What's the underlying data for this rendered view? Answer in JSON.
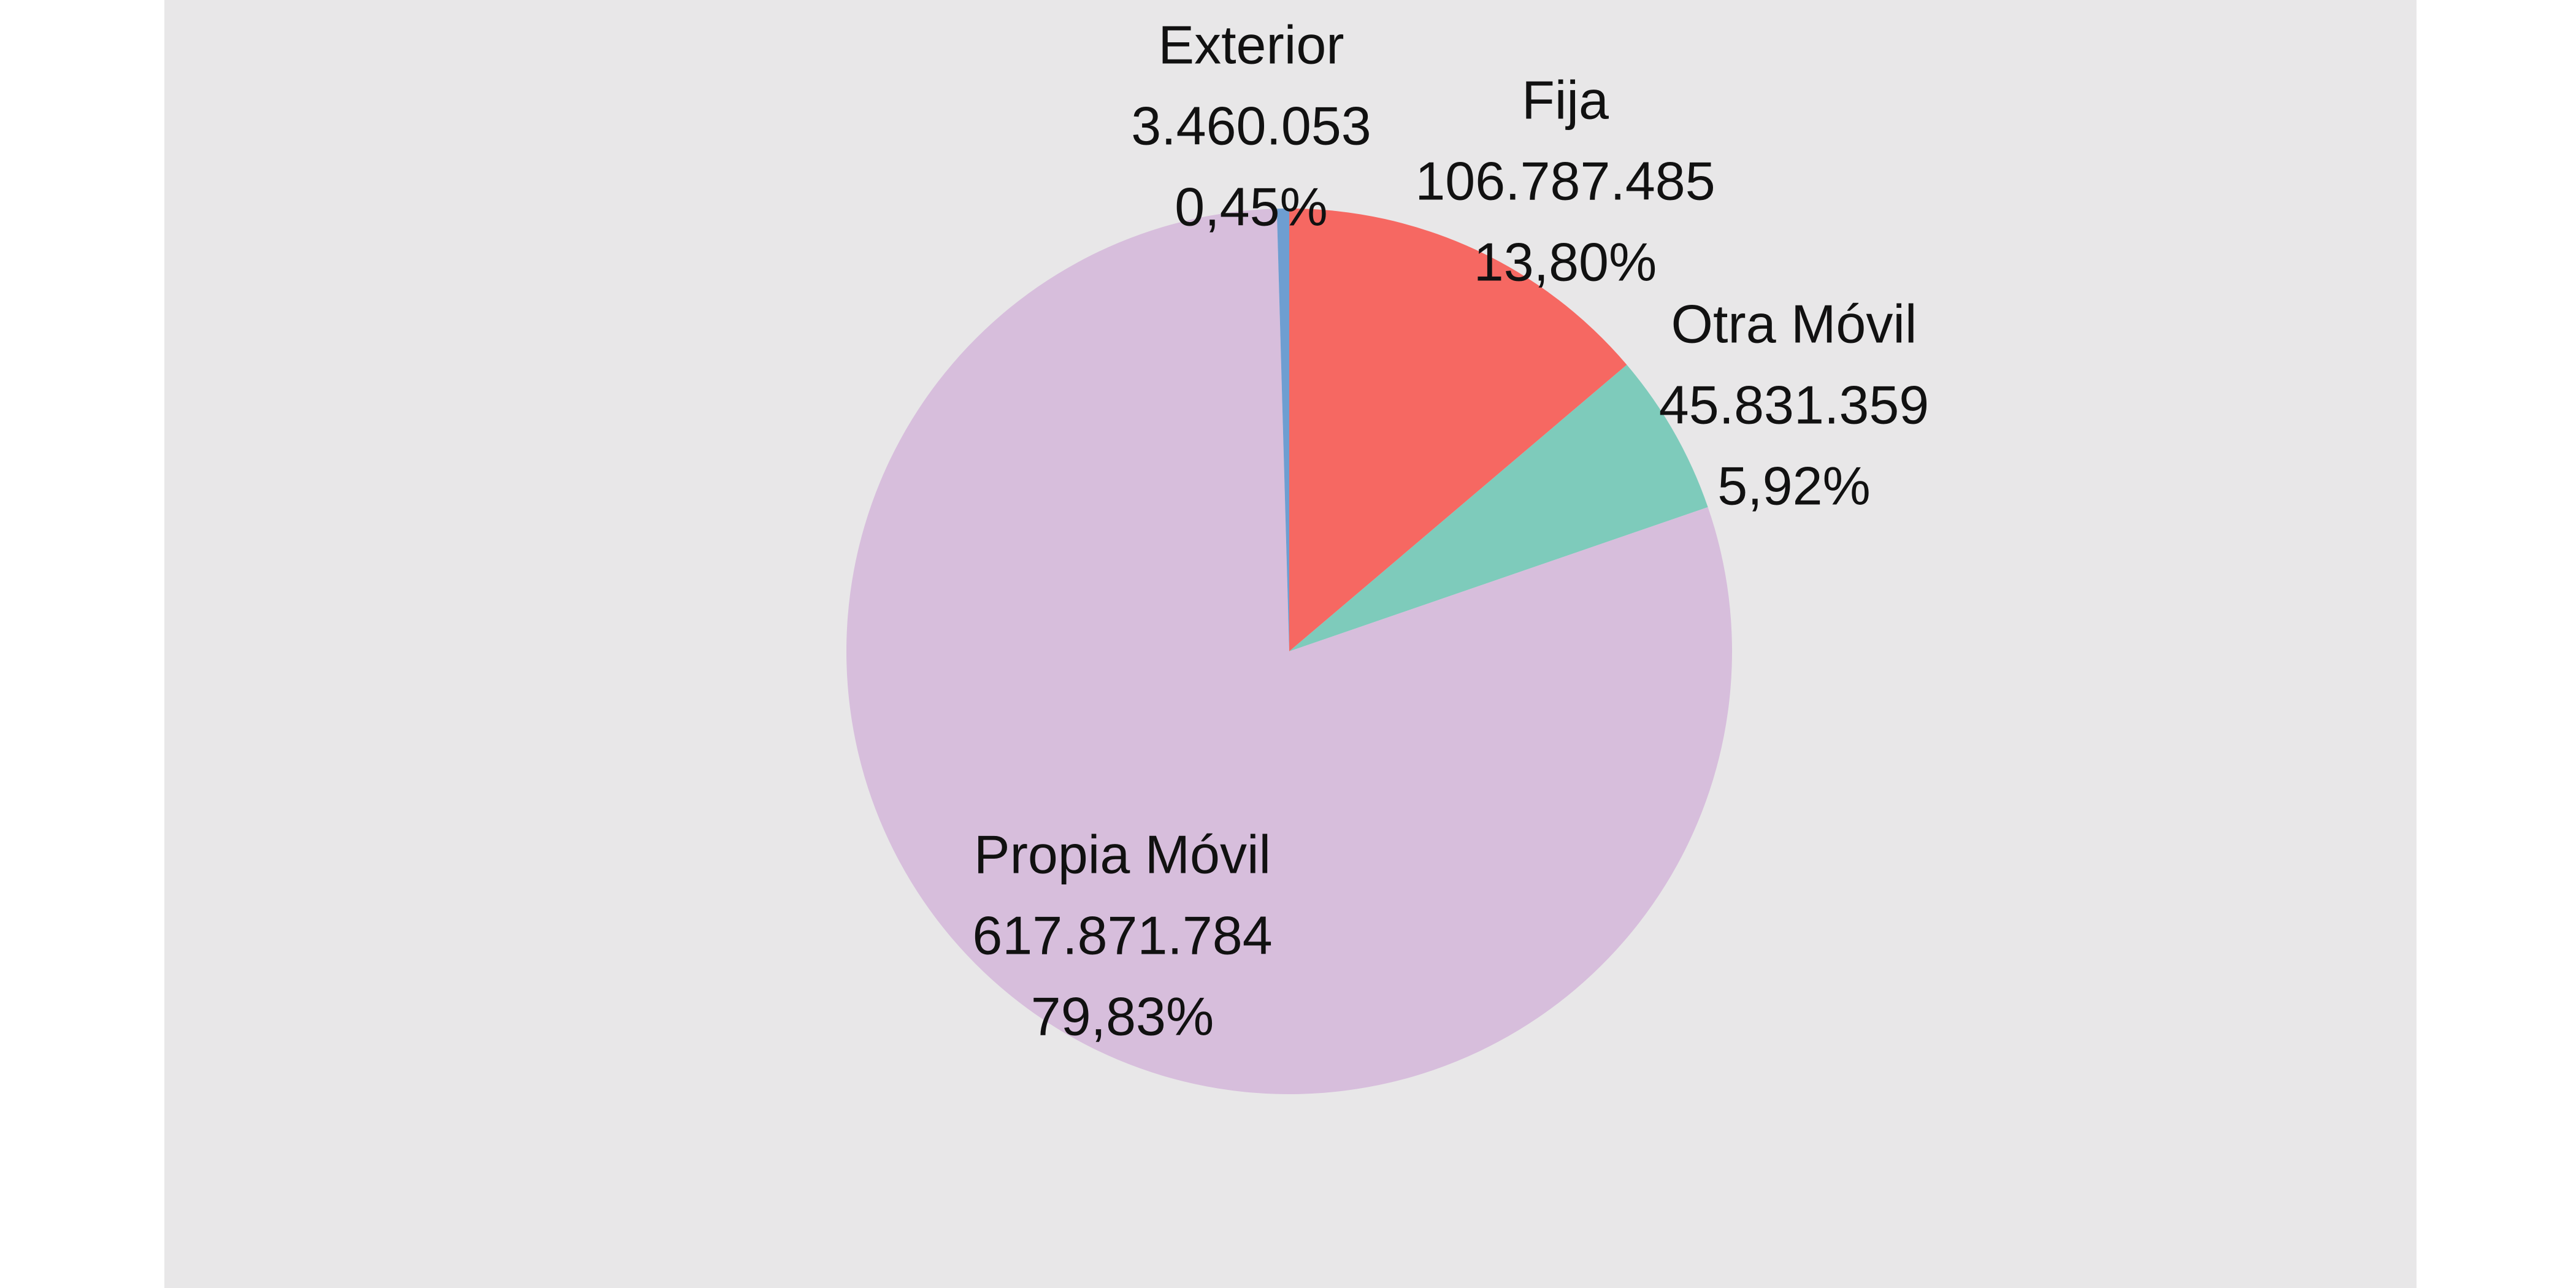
{
  "chart_data": {
    "type": "pie",
    "title": "",
    "start_angle_deg": 0,
    "direction": "clockwise",
    "slices": [
      {
        "name": "Fija",
        "value": 106787485,
        "value_label": "106.787.485",
        "percent": 13.8,
        "percent_label": "13,80%",
        "color": "#f66862"
      },
      {
        "name": "Otra Móvil",
        "value": 45831359,
        "value_label": "45.831.359",
        "percent": 5.92,
        "percent_label": "5,92%",
        "color": "#7ecbbb"
      },
      {
        "name": "Propia Móvil",
        "value": 617871784,
        "value_label": "617.871.784",
        "percent": 79.83,
        "percent_label": "79,83%",
        "color": "#d7bedc"
      },
      {
        "name": "Exterior",
        "value": 3460053,
        "value_label": "3.460.053",
        "percent": 0.45,
        "percent_label": "0,45%",
        "color": "#6e9ed1"
      }
    ],
    "background_color": "#e8e7e8",
    "legend": "none"
  }
}
